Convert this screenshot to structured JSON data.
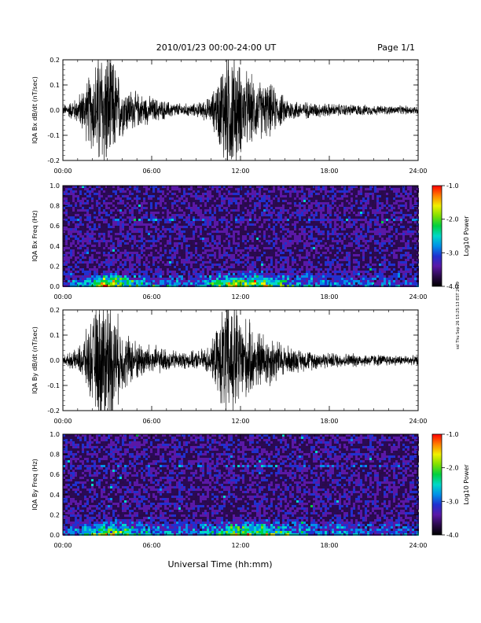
{
  "header": {
    "title": "2010/01/23  00:00-24:00 UT",
    "page": "Page 1/1"
  },
  "side_stamp": "ssl Thu Sep 26 15:25:13 EST 2019",
  "colors": {
    "trace": "#000000",
    "axes": "#000000",
    "colorbar": [
      "#000000",
      "#2a0a4a",
      "#5a18a6",
      "#2030d0",
      "#0090e8",
      "#00d8c8",
      "#00d040",
      "#80e000",
      "#f0f000",
      "#ff8000",
      "#ff0000"
    ]
  },
  "chart_data": [
    {
      "type": "line",
      "panel": "bx_waveform",
      "ylabel": "IQA Bx dB/dt (nT/sec)",
      "xlim": [
        "00:00",
        "24:00"
      ],
      "ylim": [
        -0.2,
        0.2
      ],
      "x_ticks": [
        "00:00",
        "06:00",
        "12:00",
        "18:00",
        "24:00"
      ],
      "y_ticks": [
        "-0.2",
        "-0.1",
        "0.0",
        "0.1",
        "0.2"
      ],
      "envelope_hours": [
        0,
        1,
        2,
        2.5,
        3,
        3.5,
        4,
        5,
        6,
        7,
        8,
        9,
        10,
        10.5,
        11,
        11.5,
        12,
        13,
        14,
        15,
        16,
        18,
        20,
        22,
        24
      ],
      "envelope_amplitude": [
        0.02,
        0.06,
        0.19,
        0.3,
        0.3,
        0.22,
        0.12,
        0.08,
        0.06,
        0.04,
        0.03,
        0.03,
        0.06,
        0.15,
        0.3,
        0.3,
        0.2,
        0.14,
        0.12,
        0.06,
        0.04,
        0.03,
        0.025,
        0.02,
        0.02
      ]
    },
    {
      "type": "heatmap",
      "panel": "bx_spectrogram",
      "ylabel": "IQA Bx Freq (Hz)",
      "xlim": [
        "00:00",
        "24:00"
      ],
      "ylim": [
        0.0,
        1.0
      ],
      "x_ticks": [
        "00:00",
        "06:00",
        "12:00",
        "18:00",
        "24:00"
      ],
      "y_ticks": [
        "0.0",
        "0.2",
        "0.4",
        "0.6",
        "0.8",
        "1.0"
      ],
      "colorbar_label": "Log10 Power",
      "colorbar_ticks": [
        "-1.0",
        "-2.0",
        "-3.0",
        "-4.0"
      ],
      "clim": [
        -4.0,
        -1.0
      ],
      "band_frequency_hz": 0.68
    },
    {
      "type": "line",
      "panel": "by_waveform",
      "ylabel": "IQA By dB/dt (nT/sec)",
      "xlim": [
        "00:00",
        "24:00"
      ],
      "ylim": [
        -0.2,
        0.2
      ],
      "x_ticks": [
        "00:00",
        "06:00",
        "12:00",
        "18:00",
        "24:00"
      ],
      "y_ticks": [
        "-0.2",
        "-0.1",
        "0.0",
        "0.1",
        "0.2"
      ],
      "envelope_hours": [
        0,
        1,
        2,
        2.5,
        3,
        3.5,
        4,
        5,
        6,
        7,
        8,
        9,
        10,
        10.5,
        11,
        11.5,
        12,
        13,
        14,
        15,
        16,
        18,
        20,
        22,
        24
      ],
      "envelope_amplitude": [
        0.02,
        0.05,
        0.19,
        0.3,
        0.3,
        0.24,
        0.14,
        0.09,
        0.07,
        0.05,
        0.04,
        0.04,
        0.07,
        0.16,
        0.3,
        0.3,
        0.22,
        0.14,
        0.12,
        0.07,
        0.05,
        0.035,
        0.03,
        0.025,
        0.02
      ]
    },
    {
      "type": "heatmap",
      "panel": "by_spectrogram",
      "ylabel": "IQA By Freq (Hz)",
      "xlim": [
        "00:00",
        "24:00"
      ],
      "ylim": [
        0.0,
        1.0
      ],
      "x_ticks": [
        "00:00",
        "06:00",
        "12:00",
        "18:00",
        "24:00"
      ],
      "y_ticks": [
        "0.0",
        "0.2",
        "0.4",
        "0.6",
        "0.8",
        "1.0"
      ],
      "colorbar_label": "Log10 Power",
      "colorbar_ticks": [
        "-1.0",
        "-2.0",
        "-3.0",
        "-4.0"
      ],
      "clim": [
        -4.0,
        -1.0
      ],
      "band_frequency_hz": 0.7
    }
  ],
  "xlabel": "Universal Time (hh:mm)"
}
